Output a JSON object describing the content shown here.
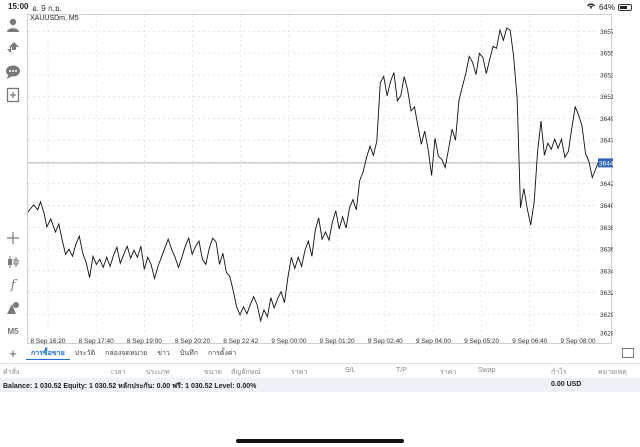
{
  "status": {
    "time": "15:00",
    "date": "อ. 9 ก.ย.",
    "battery": "64%",
    "battery_level": 0.64
  },
  "chart": {
    "symbol": "XAUUSDm, M5",
    "current_price": "3644.850"
  },
  "chart_data": {
    "type": "line",
    "title": "",
    "symbol": "XAUUSDm",
    "timeframe": "M5",
    "y_ticks": [
      "3657.870",
      "3655.715",
      "3653.560",
      "3651.405",
      "3649.250",
      "3647.095",
      "3644.850",
      "3642.785",
      "3640.630",
      "3638.475",
      "3636.320",
      "3634.165",
      "3632.010",
      "3629.855",
      "3628.000"
    ],
    "x_ticks": [
      "8 Sep 16:20",
      "8 Sep 17:40",
      "8 Sep 19:00",
      "8 Sep 20:20",
      "8 Sep 22:42",
      "9 Sep 00:00",
      "9 Sep 01:20",
      "9 Sep 02:40",
      "9 Sep 04:00",
      "9 Sep 05:20",
      "9 Sep 06:40",
      "9 Sep 08:00"
    ],
    "ylim": [
      3628.0,
      3659.5
    ],
    "xlim": [
      0,
      100
    ],
    "current_price": 3644.85,
    "series": [
      {
        "values": [
          [
            0,
            3640.0
          ],
          [
            1,
            3640.7
          ],
          [
            1.7,
            3640.2
          ],
          [
            2.2,
            3641.0
          ],
          [
            2.8,
            3639.9
          ],
          [
            3.3,
            3638.5
          ],
          [
            4.0,
            3639.3
          ],
          [
            4.8,
            3638.0
          ],
          [
            5.4,
            3638.8
          ],
          [
            6.0,
            3637.2
          ],
          [
            6.6,
            3635.8
          ],
          [
            7.2,
            3636.3
          ],
          [
            7.8,
            3635.6
          ],
          [
            8.4,
            3636.8
          ],
          [
            9.0,
            3637.6
          ],
          [
            9.6,
            3635.9
          ],
          [
            10.2,
            3635.0
          ],
          [
            10.8,
            3633.5
          ],
          [
            11.4,
            3635.6
          ],
          [
            12.0,
            3634.8
          ],
          [
            12.6,
            3635.3
          ],
          [
            13.2,
            3634.5
          ],
          [
            13.8,
            3635.5
          ],
          [
            14.4,
            3634.6
          ],
          [
            15.0,
            3635.7
          ],
          [
            15.6,
            3636.5
          ],
          [
            16.2,
            3634.9
          ],
          [
            16.8,
            3635.8
          ],
          [
            17.4,
            3636.6
          ],
          [
            18.0,
            3635.4
          ],
          [
            18.6,
            3636.2
          ],
          [
            19.2,
            3635.5
          ],
          [
            19.8,
            3636.6
          ],
          [
            20.4,
            3634.3
          ],
          [
            21.0,
            3635.5
          ],
          [
            21.6,
            3634.8
          ],
          [
            22.2,
            3633.4
          ],
          [
            22.8,
            3634.6
          ],
          [
            23.4,
            3635.5
          ],
          [
            24.0,
            3636.4
          ],
          [
            24.6,
            3637.3
          ],
          [
            25.2,
            3636.3
          ],
          [
            25.8,
            3635.5
          ],
          [
            26.4,
            3634.5
          ],
          [
            27.0,
            3635.5
          ],
          [
            27.6,
            3636.6
          ],
          [
            28.2,
            3637.4
          ],
          [
            28.8,
            3635.8
          ],
          [
            29.4,
            3636.6
          ],
          [
            30.0,
            3637.1
          ],
          [
            30.6,
            3635.3
          ],
          [
            31.2,
            3634.8
          ],
          [
            31.8,
            3636.4
          ],
          [
            32.4,
            3637.4
          ],
          [
            33.0,
            3637.0
          ],
          [
            33.6,
            3634.8
          ],
          [
            34.2,
            3635.9
          ],
          [
            34.8,
            3634.0
          ],
          [
            35.4,
            3633.6
          ],
          [
            36.0,
            3632.2
          ],
          [
            36.6,
            3630.6
          ],
          [
            37.2,
            3629.8
          ],
          [
            37.8,
            3630.6
          ],
          [
            38.4,
            3629.9
          ],
          [
            39.0,
            3630.8
          ],
          [
            39.6,
            3631.6
          ],
          [
            40.2,
            3630.8
          ],
          [
            40.8,
            3629.2
          ],
          [
            41.4,
            3630.3
          ],
          [
            42.0,
            3629.6
          ],
          [
            42.6,
            3631.5
          ],
          [
            43.2,
            3630.5
          ],
          [
            43.8,
            3631.4
          ],
          [
            44.4,
            3632.1
          ],
          [
            45.0,
            3631.0
          ],
          [
            45.6,
            3633.5
          ],
          [
            46.2,
            3635.5
          ],
          [
            46.8,
            3634.4
          ],
          [
            47.4,
            3635.5
          ],
          [
            48.0,
            3634.6
          ],
          [
            48.6,
            3636.2
          ],
          [
            49.2,
            3637.1
          ],
          [
            49.8,
            3635.6
          ],
          [
            50.4,
            3638.2
          ],
          [
            51.0,
            3639.4
          ],
          [
            51.6,
            3637.3
          ],
          [
            52.2,
            3638.0
          ],
          [
            52.8,
            3637.2
          ],
          [
            53.4,
            3639.0
          ],
          [
            54.0,
            3640.1
          ],
          [
            54.6,
            3638.3
          ],
          [
            55.2,
            3639.5
          ],
          [
            55.8,
            3638.4
          ],
          [
            56.4,
            3640.4
          ],
          [
            57.0,
            3641.2
          ],
          [
            57.6,
            3640.2
          ],
          [
            58.2,
            3643.1
          ],
          [
            58.8,
            3644.0
          ],
          [
            59.4,
            3645.4
          ],
          [
            60.0,
            3646.5
          ],
          [
            60.6,
            3645.6
          ],
          [
            61.2,
            3647.0
          ],
          [
            61.8,
            3652.8
          ],
          [
            62.4,
            3653.4
          ],
          [
            63.0,
            3651.5
          ],
          [
            63.6,
            3652.9
          ],
          [
            64.2,
            3653.8
          ],
          [
            64.8,
            3651.0
          ],
          [
            65.4,
            3651.5
          ],
          [
            66.0,
            3653.4
          ],
          [
            66.6,
            3652.1
          ],
          [
            67.2,
            3650.0
          ],
          [
            67.8,
            3650.4
          ],
          [
            68.4,
            3648.5
          ],
          [
            69.0,
            3646.7
          ],
          [
            69.6,
            3648.0
          ],
          [
            70.2,
            3646.2
          ],
          [
            70.8,
            3643.6
          ],
          [
            71.4,
            3647.3
          ],
          [
            72.0,
            3645.5
          ],
          [
            72.6,
            3645.2
          ],
          [
            73.2,
            3644.4
          ],
          [
            73.8,
            3646.3
          ],
          [
            74.4,
            3648.2
          ],
          [
            75.0,
            3647.1
          ],
          [
            75.6,
            3651.0
          ],
          [
            76.2,
            3652.4
          ],
          [
            76.8,
            3653.7
          ],
          [
            77.4,
            3655.4
          ],
          [
            78.0,
            3654.8
          ],
          [
            78.6,
            3653.6
          ],
          [
            79.2,
            3655.7
          ],
          [
            79.8,
            3655.3
          ],
          [
            80.4,
            3653.7
          ],
          [
            81.0,
            3655.1
          ],
          [
            81.6,
            3656.4
          ],
          [
            82.2,
            3656.2
          ],
          [
            82.8,
            3658.0
          ],
          [
            83.4,
            3657.0
          ],
          [
            84.0,
            3658.2
          ],
          [
            84.6,
            3658.0
          ],
          [
            85.2,
            3655.4
          ],
          [
            85.8,
            3651.3
          ],
          [
            86.4,
            3640.4
          ],
          [
            87.0,
            3642.3
          ],
          [
            87.6,
            3640.3
          ],
          [
            88.2,
            3638.7
          ],
          [
            88.8,
            3641.0
          ],
          [
            89.4,
            3646.0
          ],
          [
            90.0,
            3649.0
          ],
          [
            90.6,
            3645.6
          ],
          [
            91.2,
            3646.8
          ],
          [
            91.8,
            3646.2
          ],
          [
            92.4,
            3647.2
          ],
          [
            93.0,
            3646.3
          ],
          [
            93.6,
            3647.2
          ],
          [
            94.2,
            3645.4
          ],
          [
            94.8,
            3646.0
          ],
          [
            95.4,
            3648.3
          ],
          [
            96.0,
            3650.4
          ],
          [
            96.6,
            3649.6
          ],
          [
            97.2,
            3648.5
          ],
          [
            97.8,
            3645.8
          ],
          [
            98.4,
            3645.0
          ],
          [
            99.0,
            3643.4
          ],
          [
            99.5,
            3644.1
          ],
          [
            100,
            3644.85
          ]
        ]
      }
    ]
  },
  "tabs": {
    "items": [
      {
        "label": "การซื้อขาย"
      },
      {
        "label": "ประวัติ"
      },
      {
        "label": "กล่องจดหมาย"
      },
      {
        "label": "ข่าว"
      },
      {
        "label": "บันทึก"
      },
      {
        "label": "การตั้งค่า"
      }
    ]
  },
  "columns": [
    "คำสั่ง",
    "เวลา",
    "ประเภท",
    "ขนาด",
    "สัญลักษณ์",
    "ราคา",
    "S/L",
    "T/P",
    "ราคา",
    "Swap",
    "กำไร",
    "หมายเหตุ"
  ],
  "balance": {
    "text": "Balance: 1 030.52 Equity: 1 030.52 หลักประกัน: 0.00 ฟรี: 1 030.52 Level: 0.00%",
    "profit": "0.00  USD"
  },
  "icons": {
    "toolbar_top": [
      "person-icon",
      "trade-arrows-icon",
      "chat-icon",
      "add-document-icon"
    ],
    "toolbar_bottom": [
      "crosshair-icon",
      "candlestick-icon",
      "function-icon",
      "objects-icon",
      "timeframe-icon"
    ]
  },
  "timeframe_label": "M5"
}
